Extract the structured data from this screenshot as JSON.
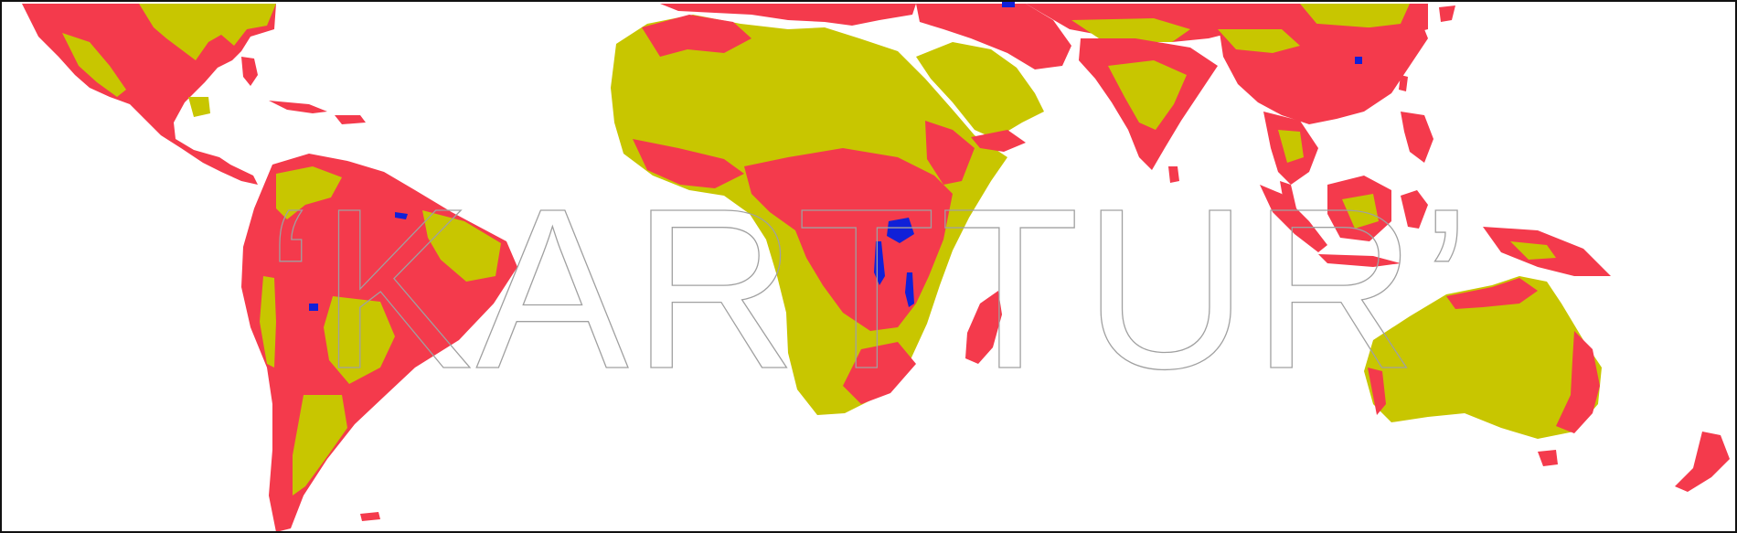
{
  "map": {
    "colors": {
      "primary": "#f43a4c",
      "secondary": "#c8c600",
      "water": "#1020d8",
      "background": "#ffffff",
      "border": "#111111",
      "watermark_stroke": "#a0a0a0"
    }
  },
  "watermark": {
    "text": "‘KARTTUR’"
  }
}
